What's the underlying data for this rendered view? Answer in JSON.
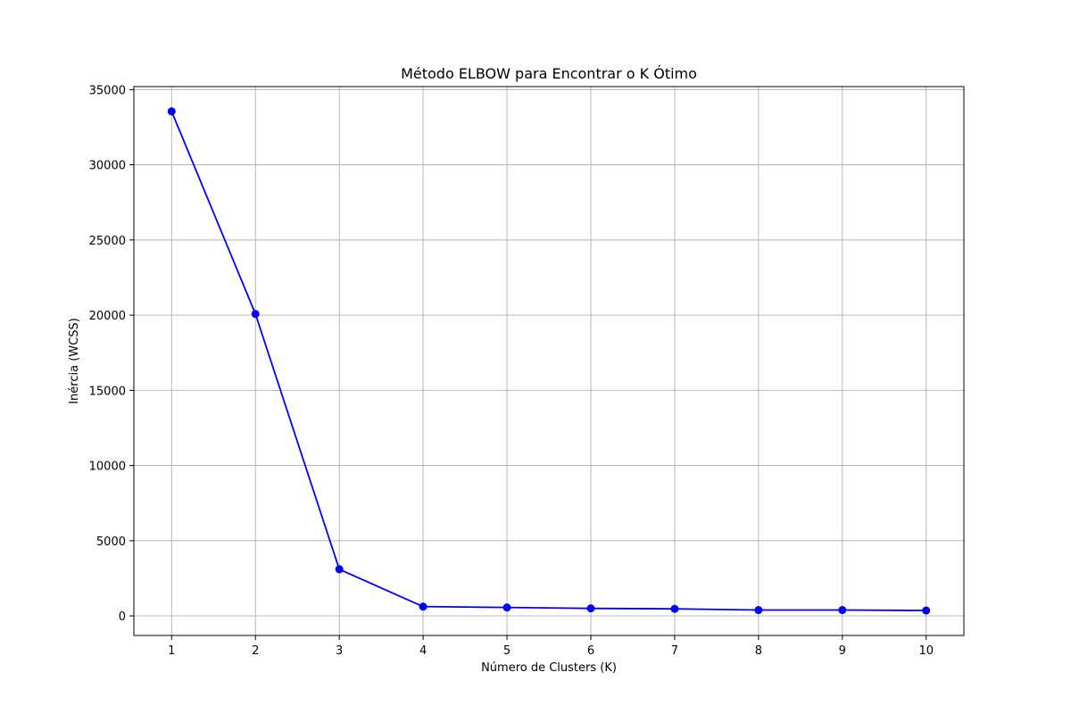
{
  "chart_data": {
    "type": "line",
    "title": "Método ELBOW para Encontrar o K Ótimo",
    "xlabel": "Número de Clusters (K)",
    "ylabel": "Inércia (WCSS)",
    "x": [
      1,
      2,
      3,
      4,
      5,
      6,
      7,
      8,
      9,
      10
    ],
    "series": [
      {
        "values": [
          33550,
          20080,
          3100,
          620,
          560,
          500,
          470,
          390,
          390,
          360
        ],
        "color": "#0000ff",
        "marker": "circle"
      }
    ],
    "xticks": [
      1,
      2,
      3,
      4,
      5,
      6,
      7,
      8,
      9,
      10
    ],
    "yticks": [
      0,
      5000,
      10000,
      15000,
      20000,
      25000,
      30000,
      35000
    ],
    "xlim": [
      0.55,
      10.45
    ],
    "ylim": [
      -1300,
      35200
    ],
    "grid": true
  }
}
